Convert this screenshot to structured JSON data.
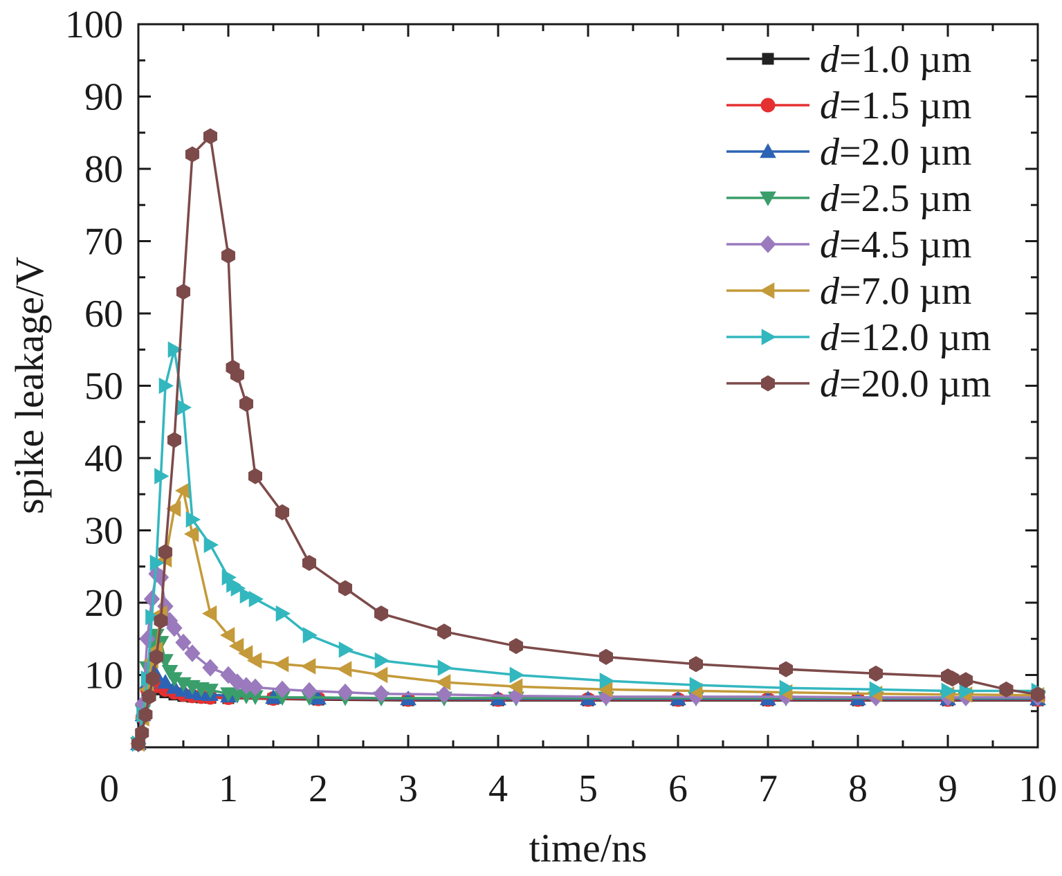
{
  "chart_data": {
    "type": "line",
    "title": "",
    "xlabel": "time/ns",
    "ylabel": "spike leakage/V",
    "xlim": [
      0,
      10
    ],
    "ylim": [
      0,
      100
    ],
    "xticks": [
      "0",
      "1",
      "2",
      "3",
      "4",
      "5",
      "6",
      "7",
      "8",
      "9",
      "10"
    ],
    "yticks": [
      "10",
      "20",
      "30",
      "40",
      "50",
      "60",
      "70",
      "80",
      "90",
      "100"
    ],
    "grid": false,
    "legend_position": "top-right",
    "legend_prefix": "d",
    "series": [
      {
        "name": "d=1.0 µm",
        "legend_value": "=1.0 µm",
        "color": "#222222",
        "marker": "square",
        "x": [
          0.0,
          0.05,
          0.1,
          0.15,
          0.2,
          0.3,
          0.4,
          0.5,
          0.6,
          0.7,
          0.8,
          1.0,
          1.5,
          2.0,
          3.0,
          4.0,
          5.0,
          6.0,
          7.0,
          8.0,
          9.0,
          10.0
        ],
        "y": [
          0.5,
          4.0,
          7.5,
          8.5,
          8.0,
          7.6,
          7.3,
          7.1,
          7.0,
          6.9,
          6.85,
          6.8,
          6.7,
          6.6,
          6.5,
          6.5,
          6.5,
          6.5,
          6.5,
          6.5,
          6.5,
          6.5
        ]
      },
      {
        "name": "d=1.5 µm",
        "legend_value": "=1.5 µm",
        "color": "#e53030",
        "marker": "circle",
        "x": [
          0.0,
          0.05,
          0.1,
          0.15,
          0.2,
          0.3,
          0.4,
          0.5,
          0.6,
          0.7,
          0.8,
          1.0,
          1.5,
          2.0,
          3.0,
          4.0,
          5.0,
          6.0,
          7.0,
          8.0,
          9.0,
          10.0
        ],
        "y": [
          0.5,
          4.2,
          8.0,
          9.0,
          8.5,
          8.0,
          7.6,
          7.3,
          7.1,
          7.0,
          6.9,
          6.85,
          6.75,
          6.7,
          6.6,
          6.6,
          6.6,
          6.6,
          6.6,
          6.6,
          6.6,
          6.6
        ]
      },
      {
        "name": "d=2.0 µm",
        "legend_value": "=2.0 µm",
        "color": "#2d63b4",
        "marker": "triangle-up",
        "x": [
          0.0,
          0.05,
          0.1,
          0.15,
          0.2,
          0.3,
          0.4,
          0.5,
          0.6,
          0.7,
          0.8,
          1.0,
          1.5,
          2.0,
          3.0,
          4.0,
          5.0,
          6.0,
          7.0,
          8.0,
          9.0,
          10.0
        ],
        "y": [
          0.5,
          4.5,
          9.0,
          10.5,
          10.0,
          9.0,
          8.3,
          7.9,
          7.6,
          7.4,
          7.3,
          7.1,
          6.9,
          6.8,
          6.7,
          6.7,
          6.7,
          6.7,
          6.7,
          6.7,
          6.7,
          6.7
        ]
      },
      {
        "name": "d=2.5 µm",
        "legend_value": "=2.5 µm",
        "color": "#3a9e6a",
        "marker": "triangle-down",
        "x": [
          0.0,
          0.05,
          0.1,
          0.15,
          0.2,
          0.25,
          0.3,
          0.35,
          0.4,
          0.5,
          0.6,
          0.7,
          0.8,
          1.0,
          1.1,
          1.2,
          1.3,
          1.6,
          1.9,
          2.3,
          2.7,
          3.4,
          4.2,
          5.2,
          6.2,
          7.2,
          8.2,
          9.0,
          9.2,
          10.0
        ],
        "y": [
          0.5,
          5.0,
          11.0,
          14.0,
          15.5,
          14.5,
          12.0,
          10.5,
          9.5,
          8.8,
          8.4,
          8.1,
          7.9,
          7.4,
          7.2,
          7.1,
          7.0,
          6.9,
          6.9,
          6.85,
          6.8,
          6.8,
          6.8,
          6.8,
          6.8,
          6.8,
          6.8,
          6.8,
          6.8,
          6.8
        ]
      },
      {
        "name": "d=4.5 µm",
        "legend_value": "=4.5 µm",
        "color": "#9a7abd",
        "marker": "diamond",
        "x": [
          0.0,
          0.05,
          0.1,
          0.15,
          0.2,
          0.25,
          0.3,
          0.35,
          0.4,
          0.5,
          0.6,
          0.8,
          1.0,
          1.1,
          1.2,
          1.3,
          1.6,
          1.9,
          2.3,
          2.7,
          3.4,
          4.2,
          5.2,
          6.2,
          7.2,
          8.2,
          9.0,
          9.2,
          10.0
        ],
        "y": [
          0.5,
          6.0,
          15.0,
          20.5,
          24.0,
          23.5,
          19.5,
          17.5,
          16.5,
          14.5,
          13.0,
          11.0,
          10.0,
          9.0,
          8.5,
          8.3,
          8.0,
          7.8,
          7.6,
          7.4,
          7.3,
          7.1,
          7.0,
          7.0,
          7.0,
          6.9,
          6.9,
          6.9,
          6.9
        ]
      },
      {
        "name": "d=7.0 µm",
        "legend_value": "=7.0 µm",
        "color": "#c49a3a",
        "marker": "triangle-left",
        "x": [
          0.0,
          0.05,
          0.1,
          0.15,
          0.2,
          0.25,
          0.3,
          0.4,
          0.5,
          0.6,
          0.8,
          1.0,
          1.1,
          1.2,
          1.3,
          1.6,
          1.9,
          2.3,
          2.7,
          3.4,
          4.2,
          5.2,
          6.2,
          7.2,
          8.2,
          9.0,
          9.2,
          10.0
        ],
        "y": [
          0.5,
          4.0,
          8.0,
          12.0,
          13.5,
          18.5,
          26.0,
          33.0,
          35.5,
          29.5,
          18.5,
          15.5,
          14.0,
          13.0,
          12.0,
          11.5,
          11.2,
          10.8,
          10.0,
          9.0,
          8.4,
          8.0,
          7.8,
          7.6,
          7.4,
          7.3,
          7.3,
          7.2
        ]
      },
      {
        "name": "d=12.0 µm",
        "legend_value": "=12.0 µm",
        "color": "#33b7bf",
        "marker": "triangle-right",
        "x": [
          0.0,
          0.05,
          0.1,
          0.15,
          0.2,
          0.25,
          0.3,
          0.4,
          0.5,
          0.6,
          0.8,
          1.0,
          1.05,
          1.1,
          1.2,
          1.3,
          1.6,
          1.9,
          2.3,
          2.7,
          3.4,
          4.2,
          5.2,
          6.2,
          7.2,
          8.2,
          9.0,
          9.2,
          10.0
        ],
        "y": [
          0.5,
          4.5,
          9.5,
          18.0,
          25.5,
          37.5,
          50.0,
          55.0,
          47.0,
          31.5,
          28.0,
          23.5,
          22.5,
          22.0,
          21.0,
          20.5,
          18.5,
          15.5,
          13.5,
          12.0,
          11.0,
          10.0,
          9.2,
          8.6,
          8.2,
          8.0,
          7.8,
          7.8,
          7.8
        ]
      },
      {
        "name": "d=20.0 µm",
        "legend_value": "=20.0 µm",
        "color": "#7d4a4a",
        "marker": "hexagon",
        "x": [
          0.0,
          0.04,
          0.08,
          0.12,
          0.16,
          0.2,
          0.25,
          0.3,
          0.4,
          0.5,
          0.6,
          0.8,
          1.0,
          1.05,
          1.1,
          1.2,
          1.3,
          1.6,
          1.9,
          2.3,
          2.7,
          3.4,
          4.2,
          5.2,
          6.2,
          7.2,
          8.2,
          9.0,
          9.05,
          9.2,
          9.65,
          10.0
        ],
        "y": [
          0.5,
          2.0,
          4.5,
          7.0,
          9.5,
          12.5,
          17.5,
          27.0,
          42.5,
          63.0,
          82.0,
          84.5,
          68.0,
          52.5,
          51.5,
          47.5,
          37.5,
          32.5,
          25.5,
          22.0,
          18.5,
          16.0,
          14.0,
          12.5,
          11.5,
          10.8,
          10.2,
          9.8,
          9.5,
          9.3,
          8.0,
          7.3
        ]
      }
    ]
  }
}
